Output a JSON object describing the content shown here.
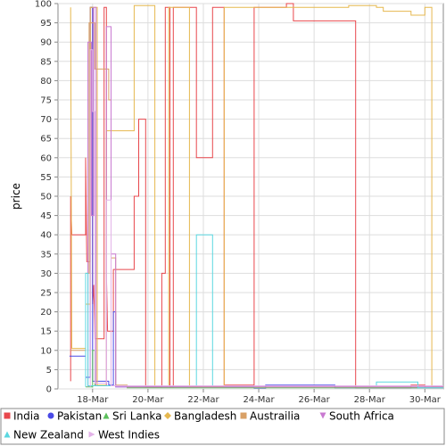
{
  "chart_data": {
    "type": "line",
    "title": "",
    "xlabel": "",
    "ylabel": "price",
    "ylim": [
      0,
      100
    ],
    "yticks": [
      0,
      5,
      10,
      15,
      20,
      25,
      30,
      35,
      40,
      45,
      50,
      55,
      60,
      65,
      70,
      75,
      80,
      85,
      90,
      95,
      100
    ],
    "xlim": [
      "2013-03-16T18:00",
      "2013-03-30T16:00"
    ],
    "xticks": [
      {
        "label": "18-Mar",
        "date": "2013-03-18T00:00"
      },
      {
        "label": "20-Mar",
        "date": "2013-03-20T00:00"
      },
      {
        "label": "22-Mar",
        "date": "2013-03-22T00:00"
      },
      {
        "label": "24-Mar",
        "date": "2013-03-24T00:00"
      },
      {
        "label": "26-Mar",
        "date": "2013-03-26T00:00"
      },
      {
        "label": "28-Mar",
        "date": "2013-03-28T00:00"
      },
      {
        "label": "30-Mar",
        "date": "2013-03-30T00:00"
      }
    ],
    "grid": true,
    "legend_position": "bottom",
    "series": [
      {
        "name": "India",
        "color": "#e8474c",
        "marker": "square",
        "points": [
          [
            "2013-03-17T05:00",
            2
          ],
          [
            "2013-03-17T05:00",
            50
          ],
          [
            "2013-03-17T06:00",
            40
          ],
          [
            "2013-03-17T18:00",
            40
          ],
          [
            "2013-03-17T18:00",
            60
          ],
          [
            "2013-03-17T19:00",
            33
          ],
          [
            "2013-03-17T22:00",
            33
          ],
          [
            "2013-03-17T22:00",
            99
          ],
          [
            "2013-03-18T00:00",
            99
          ],
          [
            "2013-03-18T00:00",
            22
          ],
          [
            "2013-03-18T01:00",
            27
          ],
          [
            "2013-03-18T02:00",
            13
          ],
          [
            "2013-03-18T10:00",
            13
          ],
          [
            "2013-03-18T10:00",
            99
          ],
          [
            "2013-03-18T12:00",
            99
          ],
          [
            "2013-03-18T12:00",
            30
          ],
          [
            "2013-03-18T13:00",
            15
          ],
          [
            "2013-03-18T18:00",
            15
          ],
          [
            "2013-03-18T18:00",
            31
          ],
          [
            "2013-03-19T12:00",
            31
          ],
          [
            "2013-03-19T12:00",
            50
          ],
          [
            "2013-03-19T16:00",
            50
          ],
          [
            "2013-03-19T16:00",
            70
          ],
          [
            "2013-03-19T22:00",
            70
          ],
          [
            "2013-03-19T22:00",
            0.5
          ],
          [
            "2013-03-20T12:00",
            0.5
          ],
          [
            "2013-03-20T12:00",
            30
          ],
          [
            "2013-03-20T15:00",
            30
          ],
          [
            "2013-03-20T15:00",
            99
          ],
          [
            "2013-03-20T19:00",
            99
          ],
          [
            "2013-03-20T19:00",
            0.5
          ],
          [
            "2013-03-20T22:00",
            0.5
          ],
          [
            "2013-03-20T22:00",
            99
          ],
          [
            "2013-03-21T18:00",
            99
          ],
          [
            "2013-03-21T18:00",
            60
          ],
          [
            "2013-03-22T08:00",
            60
          ],
          [
            "2013-03-22T08:00",
            99
          ],
          [
            "2013-03-22T18:00",
            99
          ],
          [
            "2013-03-22T18:00",
            1
          ],
          [
            "2013-03-23T20:00",
            1
          ],
          [
            "2013-03-23T20:00",
            99
          ],
          [
            "2013-03-25T00:00",
            99
          ],
          [
            "2013-03-25T00:00",
            100
          ],
          [
            "2013-03-25T06:00",
            100
          ],
          [
            "2013-03-25T06:00",
            95.5
          ],
          [
            "2013-03-27T12:00",
            95.5
          ],
          [
            "2013-03-27T12:00",
            0.3
          ],
          [
            "2013-03-29T12:00",
            0.3
          ],
          [
            "2013-03-29T12:00",
            1
          ],
          [
            "2013-03-30T00:00",
            1
          ],
          [
            "2013-03-30T00:00",
            0.3
          ],
          [
            "2013-03-30T16:00",
            0.3
          ]
        ]
      },
      {
        "name": "Pakistan",
        "color": "#4a4ae6",
        "marker": "circle",
        "points": [
          [
            "2013-03-17T04:00",
            8.5
          ],
          [
            "2013-03-17T18:00",
            8.5
          ],
          [
            "2013-03-17T18:00",
            3
          ],
          [
            "2013-03-17T22:00",
            3
          ],
          [
            "2013-03-17T22:00",
            99
          ],
          [
            "2013-03-18T00:00",
            99
          ],
          [
            "2013-03-18T00:00",
            2
          ],
          [
            "2013-03-18T14:00",
            2
          ],
          [
            "2013-03-18T14:00",
            1
          ],
          [
            "2013-03-18T18:00",
            1
          ],
          [
            "2013-03-18T18:00",
            20
          ],
          [
            "2013-03-18T20:00",
            20
          ],
          [
            "2013-03-18T20:00",
            0.5
          ],
          [
            "2013-03-23T20:00",
            0.5
          ],
          [
            "2013-03-23T20:00",
            0.2
          ],
          [
            "2013-03-24T06:00",
            0.2
          ],
          [
            "2013-03-24T06:00",
            1
          ],
          [
            "2013-03-26T18:00",
            1
          ],
          [
            "2013-03-26T18:00",
            0.3
          ],
          [
            "2013-03-30T16:00",
            0.3
          ]
        ]
      },
      {
        "name": "Sri Lanka",
        "color": "#5bbf5b",
        "marker": "triangle-up",
        "points": [
          [
            "2013-03-17T18:00",
            0.5
          ],
          [
            "2013-03-18T00:00",
            0.5
          ],
          [
            "2013-03-18T00:00",
            10
          ],
          [
            "2013-03-18T02:00",
            10
          ],
          [
            "2013-03-18T02:00",
            0.8
          ],
          [
            "2013-03-19T06:00",
            0.8
          ],
          [
            "2013-03-19T06:00",
            0.3
          ],
          [
            "2013-03-30T16:00",
            0.3
          ]
        ]
      },
      {
        "name": "Bangladesh",
        "color": "#e6b84f",
        "marker": "diamond",
        "points": [
          [
            "2013-03-17T05:00",
            99
          ],
          [
            "2013-03-17T06:00",
            10.5
          ],
          [
            "2013-03-17T18:00",
            10.5
          ],
          [
            "2013-03-17T18:00",
            22
          ],
          [
            "2013-03-17T22:00",
            22
          ],
          [
            "2013-03-17T22:00",
            99
          ],
          [
            "2013-03-18T04:00",
            99
          ],
          [
            "2013-03-18T04:00",
            1
          ],
          [
            "2013-03-18T12:00",
            1
          ],
          [
            "2013-03-18T12:00",
            67
          ],
          [
            "2013-03-19T12:00",
            67
          ],
          [
            "2013-03-19T12:00",
            99.5
          ],
          [
            "2013-03-20T06:00",
            99.5
          ],
          [
            "2013-03-20T06:00",
            0.8
          ],
          [
            "2013-03-20T18:00",
            0.8
          ],
          [
            "2013-03-20T18:00",
            99
          ],
          [
            "2013-03-21T12:00",
            99
          ],
          [
            "2013-03-21T12:00",
            0.6
          ],
          [
            "2013-03-22T18:00",
            0.6
          ],
          [
            "2013-03-22T18:00",
            99
          ],
          [
            "2013-03-27T06:00",
            99
          ],
          [
            "2013-03-27T06:00",
            99.5
          ],
          [
            "2013-03-28T06:00",
            99.5
          ],
          [
            "2013-03-28T06:00",
            99
          ],
          [
            "2013-03-28T12:00",
            99
          ],
          [
            "2013-03-28T12:00",
            98
          ],
          [
            "2013-03-29T12:00",
            98
          ],
          [
            "2013-03-29T12:00",
            97
          ],
          [
            "2013-03-30T00:00",
            97
          ],
          [
            "2013-03-30T00:00",
            99
          ],
          [
            "2013-03-30T06:00",
            99
          ],
          [
            "2013-03-30T06:00",
            0.5
          ],
          [
            "2013-03-30T16:00",
            0.5
          ]
        ]
      },
      {
        "name": "Austrailia",
        "color": "#d9a066",
        "marker": "square",
        "points": [
          [
            "2013-03-17T05:00",
            10
          ],
          [
            "2013-03-17T18:00",
            10
          ],
          [
            "2013-03-17T18:00",
            30
          ],
          [
            "2013-03-17T21:00",
            30
          ],
          [
            "2013-03-17T21:00",
            95
          ],
          [
            "2013-03-18T02:00",
            95
          ],
          [
            "2013-03-18T02:00",
            83
          ],
          [
            "2013-03-18T14:00",
            83
          ],
          [
            "2013-03-18T14:00",
            75
          ],
          [
            "2013-03-18T16:00",
            75
          ],
          [
            "2013-03-18T16:00",
            34
          ],
          [
            "2013-03-18T20:00",
            34
          ],
          [
            "2013-03-18T20:00",
            1
          ],
          [
            "2013-03-19T06:00",
            1
          ],
          [
            "2013-03-19T06:00",
            0.5
          ],
          [
            "2013-03-30T16:00",
            0.5
          ]
        ]
      },
      {
        "name": "South Africa",
        "color": "#c97ad1",
        "marker": "triangle-down",
        "points": [
          [
            "2013-03-17T20:00",
            0.5
          ],
          [
            "2013-03-17T20:00",
            90
          ],
          [
            "2013-03-17T23:00",
            90
          ],
          [
            "2013-03-17T23:00",
            45
          ],
          [
            "2013-03-18T01:00",
            45
          ],
          [
            "2013-03-18T01:00",
            99
          ],
          [
            "2013-03-18T03:00",
            99
          ],
          [
            "2013-03-18T03:00",
            0.8
          ],
          [
            "2013-03-18T12:00",
            0.8
          ],
          [
            "2013-03-18T12:00",
            94
          ],
          [
            "2013-03-18T16:00",
            94
          ],
          [
            "2013-03-18T16:00",
            35
          ],
          [
            "2013-03-18T20:00",
            35
          ],
          [
            "2013-03-18T20:00",
            0.5
          ],
          [
            "2013-03-30T16:00",
            0.5
          ]
        ]
      },
      {
        "name": "New Zealand",
        "color": "#5ad7e0",
        "marker": "triangle-up",
        "points": [
          [
            "2013-03-17T18:00",
            0.5
          ],
          [
            "2013-03-17T18:00",
            30
          ],
          [
            "2013-03-17T20:00",
            30
          ],
          [
            "2013-03-17T20:00",
            0.8
          ],
          [
            "2013-03-21T18:00",
            0.8
          ],
          [
            "2013-03-21T18:00",
            40
          ],
          [
            "2013-03-22T08:00",
            40
          ],
          [
            "2013-03-22T08:00",
            0.8
          ],
          [
            "2013-03-28T06:00",
            0.8
          ],
          [
            "2013-03-28T06:00",
            1.8
          ],
          [
            "2013-03-29T18:00",
            1.8
          ],
          [
            "2013-03-29T18:00",
            0.3
          ],
          [
            "2013-03-30T16:00",
            0.3
          ]
        ]
      },
      {
        "name": "West Indies",
        "color": "#e3b3e8",
        "marker": "triangle-right",
        "points": [
          [
            "2013-03-17T22:00",
            0.5
          ],
          [
            "2013-03-17T22:00",
            88
          ],
          [
            "2013-03-18T00:00",
            88
          ],
          [
            "2013-03-18T00:00",
            72
          ],
          [
            "2013-03-18T02:00",
            72
          ],
          [
            "2013-03-18T02:00",
            1.5
          ],
          [
            "2013-03-18T12:00",
            1.5
          ],
          [
            "2013-03-18T12:00",
            49
          ],
          [
            "2013-03-18T16:00",
            49
          ],
          [
            "2013-03-18T16:00",
            0.8
          ],
          [
            "2013-03-30T16:00",
            0.8
          ]
        ]
      }
    ]
  }
}
